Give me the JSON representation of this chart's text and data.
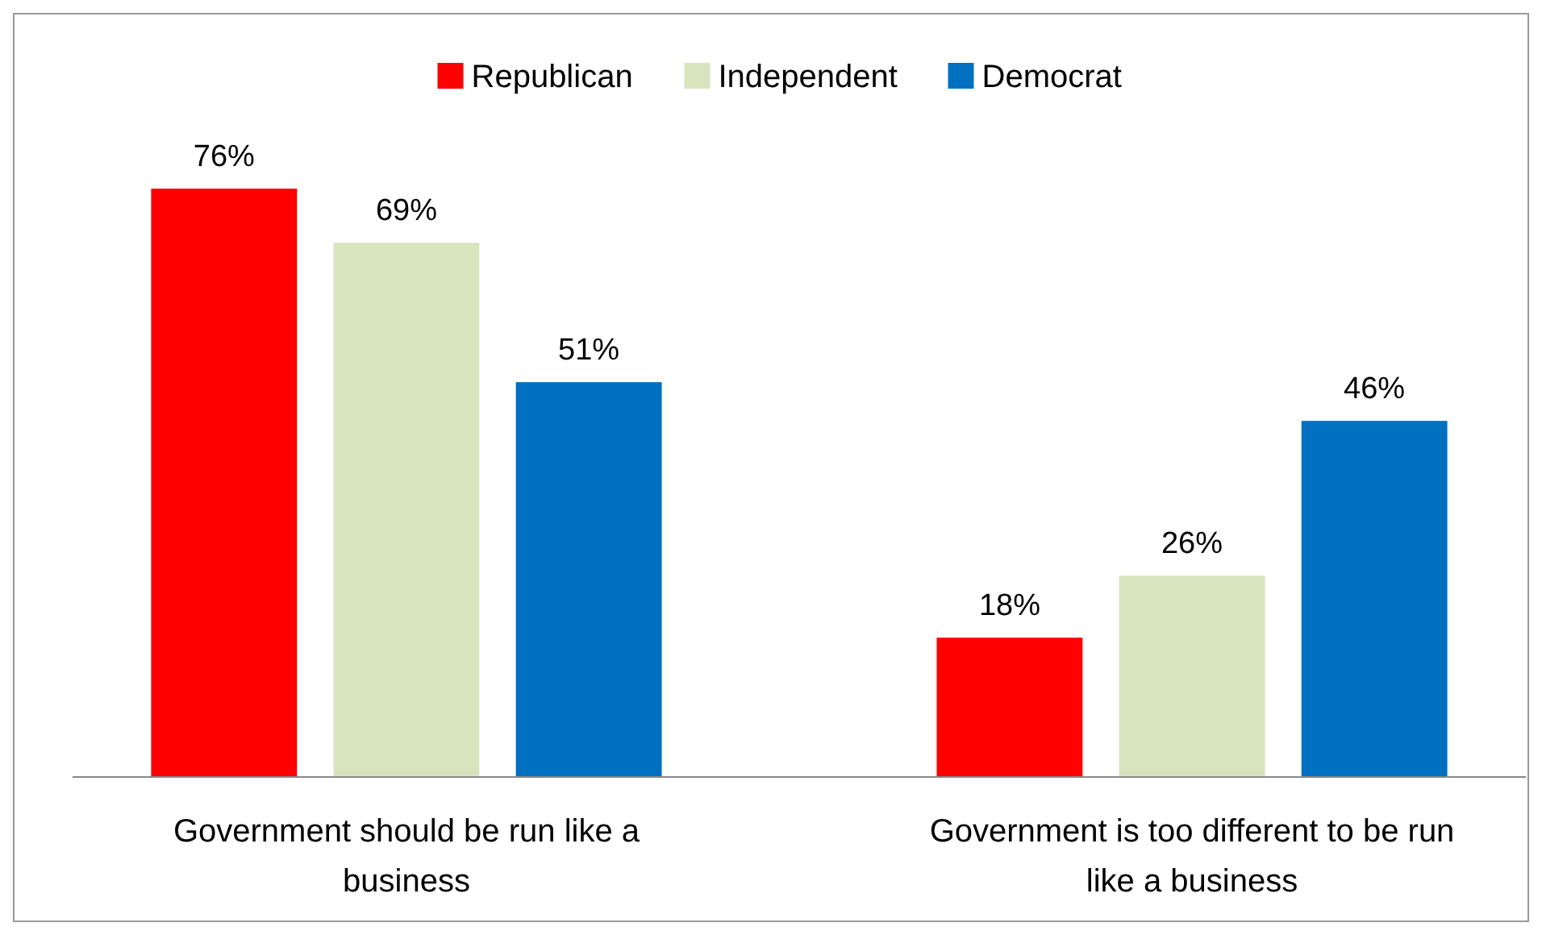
{
  "chart_data": {
    "type": "bar",
    "categories": [
      "Government should be run like a business",
      "Government is too different to be run like a business"
    ],
    "series": [
      {
        "name": "Republican",
        "color": "#ff0000",
        "values": [
          76,
          18
        ],
        "value_labels": [
          "76%",
          "18%"
        ]
      },
      {
        "name": "Independent",
        "color": "#d7e4bd",
        "values": [
          69,
          26
        ],
        "value_labels": [
          "69%",
          "26%"
        ]
      },
      {
        "name": "Democrat",
        "color": "#0070c0",
        "values": [
          51,
          46
        ],
        "value_labels": [
          "51%",
          "46%"
        ]
      }
    ],
    "legend": "top",
    "grid": false
  }
}
